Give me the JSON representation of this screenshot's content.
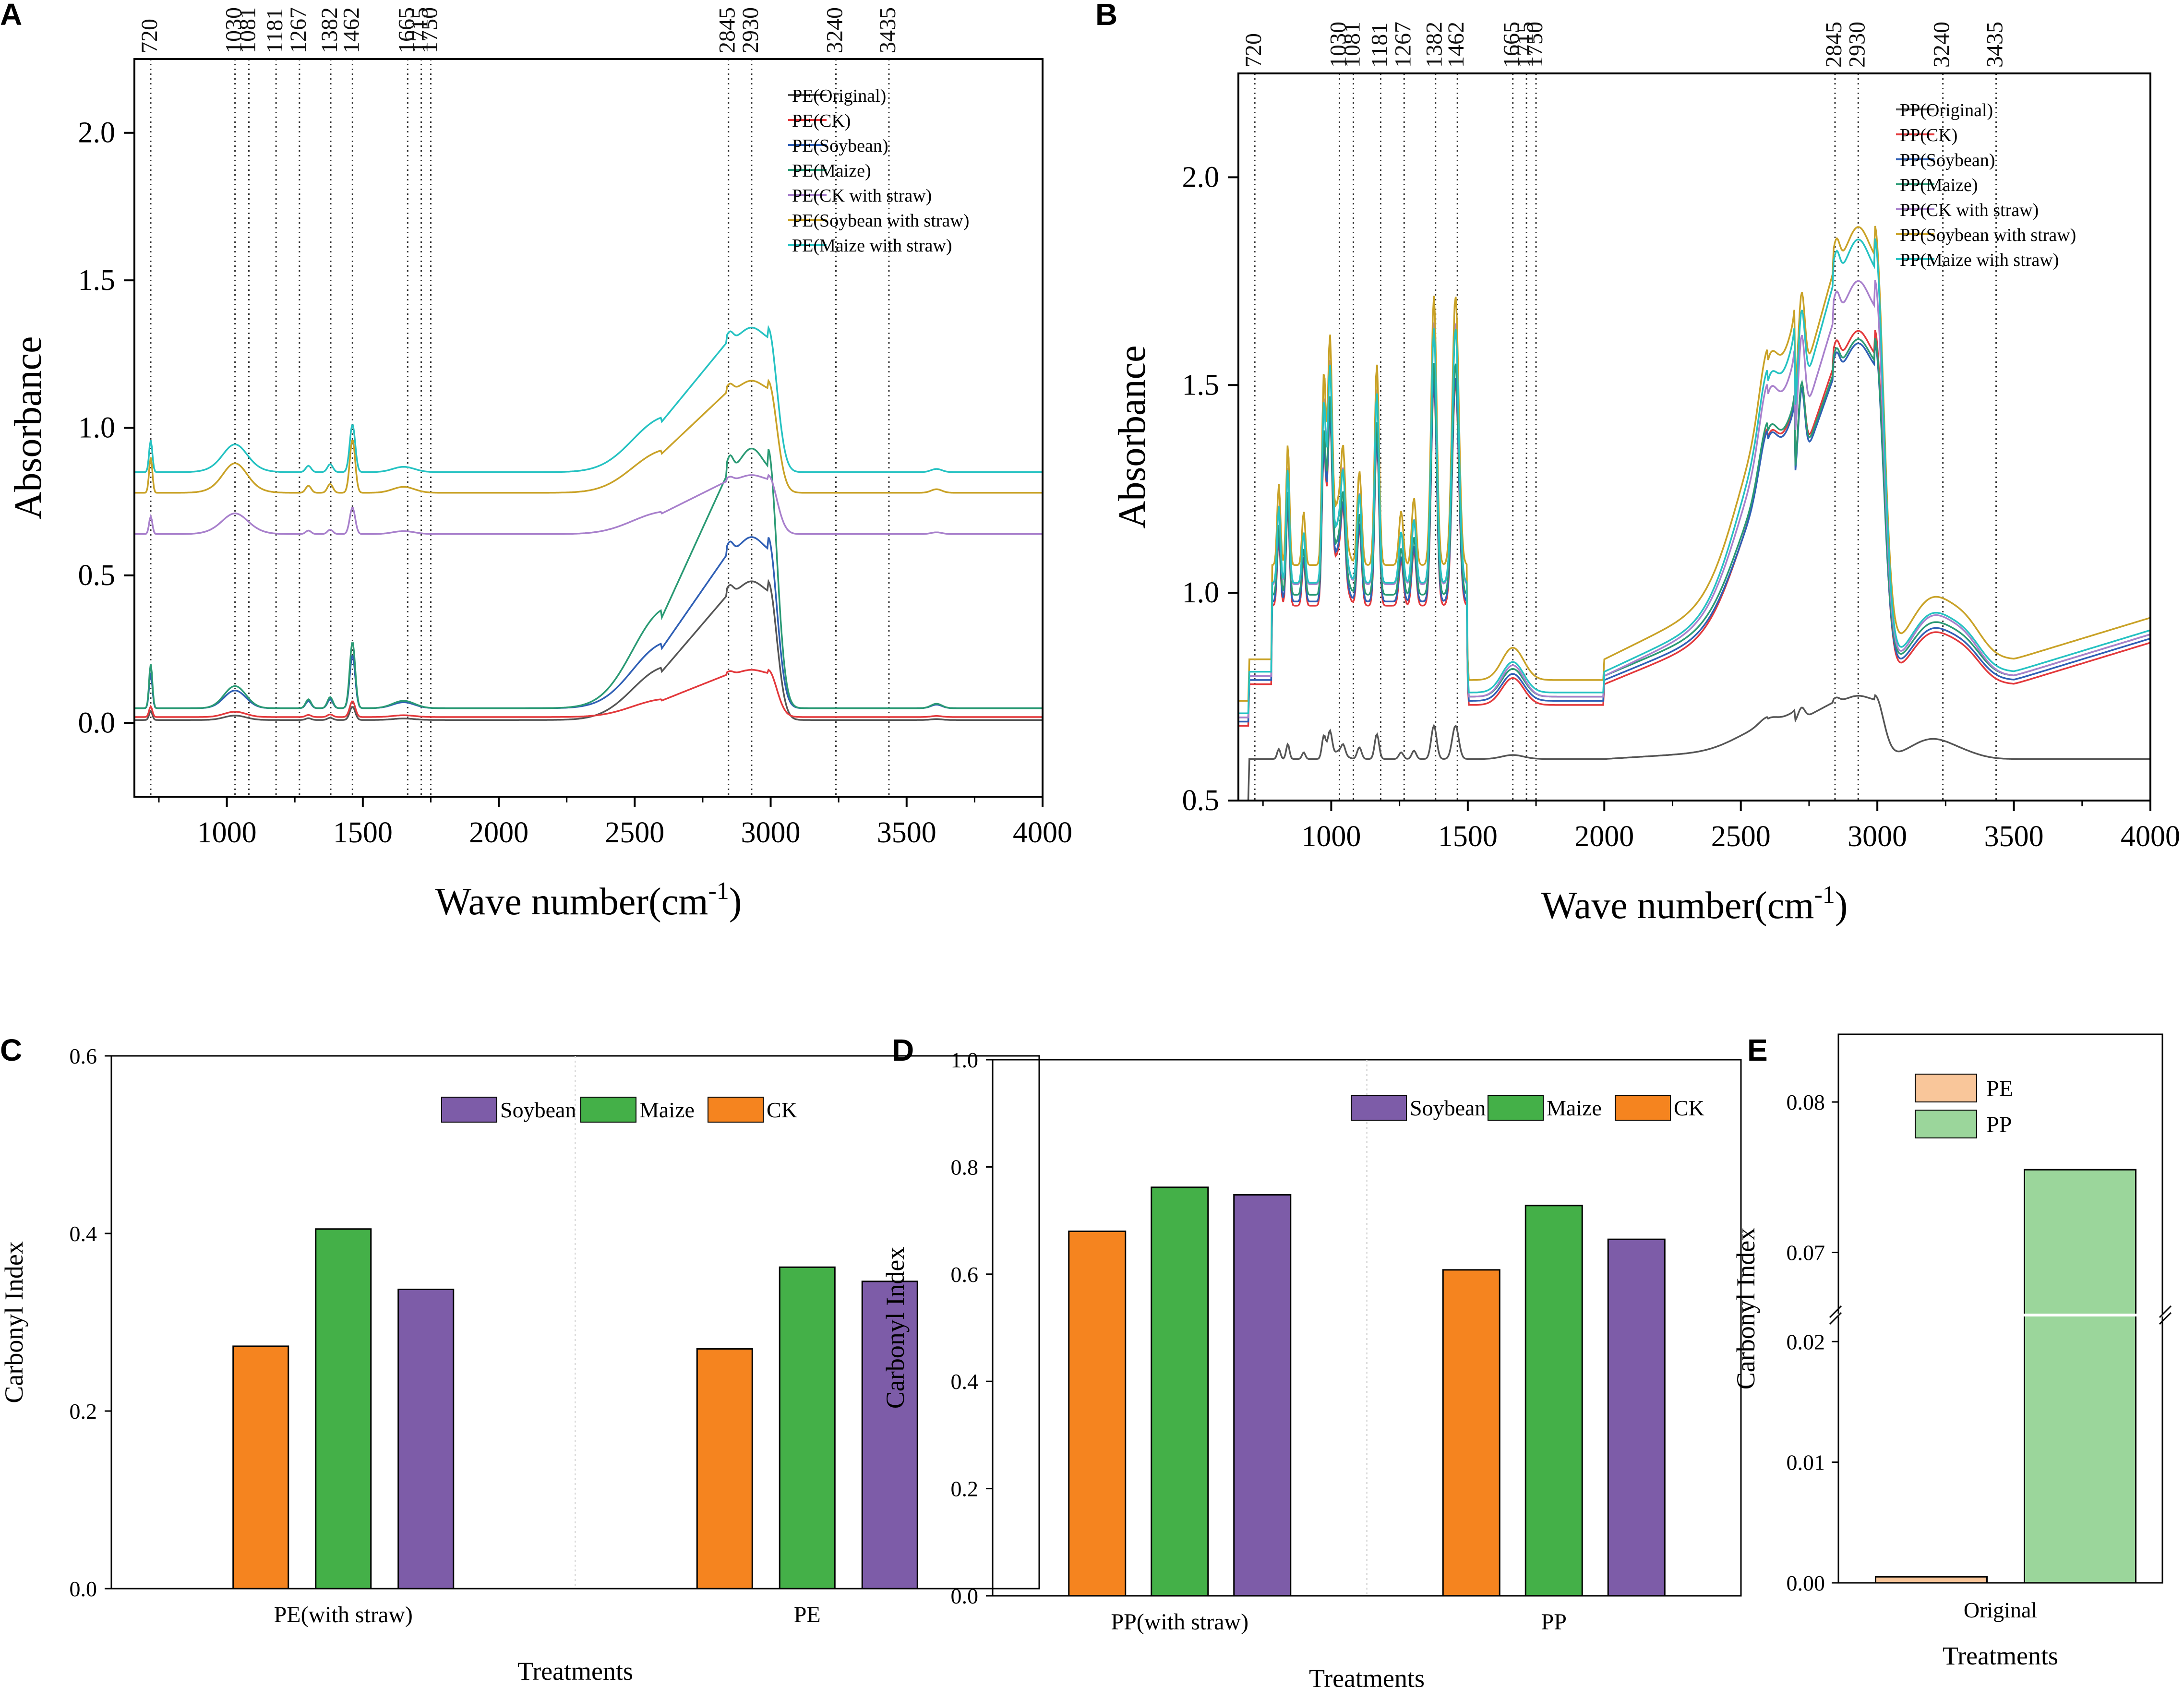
{
  "figure": {
    "panels": [
      "A",
      "B",
      "C",
      "D",
      "E"
    ]
  },
  "chart_data": [
    {
      "panel": "A",
      "type": "line",
      "title": "",
      "xlabel": "Wave number(cm",
      "xlabel_sup": "-1",
      "xlabel_close": ")",
      "ylabel": "Absorbance",
      "xlim": [
        660,
        4000
      ],
      "ylim": [
        -0.25,
        2.25
      ],
      "xticks": [
        1000,
        1500,
        2000,
        2500,
        3000,
        3500,
        4000
      ],
      "yticks": [
        0.0,
        0.5,
        1.0,
        1.5,
        2.0
      ],
      "ytick_labels": [
        "0.0",
        "0.5",
        "1.0",
        "1.5",
        "2.0"
      ],
      "ref_lines": [
        720,
        1030,
        1081,
        1181,
        1267,
        1382,
        1462,
        1665,
        1715,
        1750,
        2845,
        2930,
        3240,
        3435
      ],
      "legend_position": "top-right",
      "series": [
        {
          "name": "PE(Original)",
          "color": "#555555",
          "base": 0.01,
          "peak": 0.48,
          "bump": 0.05
        },
        {
          "name": "PE(CK)",
          "color": "#e3393c",
          "base": 0.02,
          "peak": 0.18,
          "bump": 0.06
        },
        {
          "name": "PE(Soybean)",
          "color": "#2f5fb5",
          "base": 0.05,
          "peak": 0.63,
          "bump": 0.2
        },
        {
          "name": "PE(Maize)",
          "color": "#2a9a74",
          "base": 0.05,
          "peak": 0.93,
          "bump": 0.25
        },
        {
          "name": "PE(CK with straw)",
          "color": "#a880cc",
          "base": 0.64,
          "peak": 0.84,
          "bump": 0.1
        },
        {
          "name": "PE(Soybean with straw)",
          "color": "#c9a227",
          "base": 0.78,
          "peak": 1.16,
          "bump": 0.2
        },
        {
          "name": "PE(Maize with straw)",
          "color": "#25c2c2",
          "base": 0.85,
          "peak": 1.34,
          "bump": 0.18
        }
      ]
    },
    {
      "panel": "B",
      "type": "line",
      "title": "",
      "xlabel": "Wave number(cm",
      "xlabel_sup": "-1",
      "xlabel_close": ")",
      "ylabel": "Absorbance",
      "xlim": [
        660,
        4000
      ],
      "ylim": [
        0.5,
        2.25
      ],
      "xticks": [
        1000,
        1500,
        2000,
        2500,
        3000,
        3500,
        4000
      ],
      "yticks": [
        0.5,
        1.0,
        1.5,
        2.0
      ],
      "ytick_labels": [
        "0.5",
        "1.0",
        "1.5",
        "2.0"
      ],
      "ref_lines": [
        720,
        1030,
        1081,
        1181,
        1267,
        1382,
        1462,
        1665,
        1715,
        1750,
        2845,
        2930,
        3240,
        3435
      ],
      "legend_position": "top-right",
      "series": [
        {
          "name": "PP(Original)",
          "color": "#555555",
          "base": 0.6,
          "peak": 0.76,
          "bump": 0.1
        },
        {
          "name": "PP(CK)",
          "color": "#e3393c",
          "base": 0.78,
          "peak": 1.68,
          "bump": 0.6
        },
        {
          "name": "PP(Soybean)",
          "color": "#2f5fb5",
          "base": 0.79,
          "peak": 1.65,
          "bump": 0.6
        },
        {
          "name": "PP(Maize)",
          "color": "#2a9a74",
          "base": 0.8,
          "peak": 1.66,
          "bump": 0.62
        },
        {
          "name": "PP(CK with straw)",
          "color": "#a880cc",
          "base": 0.8,
          "peak": 1.8,
          "bump": 0.7
        },
        {
          "name": "PP(Soybean with straw)",
          "color": "#c9a227",
          "base": 0.84,
          "peak": 1.93,
          "bump": 0.72
        },
        {
          "name": "PP(Maize with straw)",
          "color": "#25c2c2",
          "base": 0.81,
          "peak": 1.9,
          "bump": 0.68
        }
      ]
    },
    {
      "panel": "C",
      "type": "bar",
      "xlabel": "Treatments",
      "ylabel": "Carbonyl Index",
      "ylim": [
        0,
        0.6
      ],
      "yticks": [
        0.0,
        0.2,
        0.4,
        0.6
      ],
      "ytick_labels": [
        "0.0",
        "0.2",
        "0.4",
        "0.6"
      ],
      "categories": [
        "PE(with straw)",
        "PE"
      ],
      "legend_position": "top-right",
      "series": [
        {
          "name": "CK",
          "color": "#f5841f",
          "values": [
            0.273,
            0.27
          ]
        },
        {
          "name": "Maize",
          "color": "#44b048",
          "values": [
            0.405,
            0.362
          ]
        },
        {
          "name": "Soybean",
          "color": "#7d5ca8",
          "values": [
            0.337,
            0.346
          ]
        }
      ],
      "legend_order": [
        "Soybean",
        "Maize",
        "CK"
      ]
    },
    {
      "panel": "D",
      "type": "bar",
      "xlabel": "Treatments",
      "ylabel": "Carbonyl Index",
      "ylim": [
        0,
        1.0
      ],
      "yticks": [
        0.0,
        0.2,
        0.4,
        0.6,
        0.8,
        1.0
      ],
      "ytick_labels": [
        "0.0",
        "0.2",
        "0.4",
        "0.6",
        "0.8",
        "1.0"
      ],
      "categories": [
        "PP(with straw)",
        "PP"
      ],
      "legend_position": "top-right",
      "series": [
        {
          "name": "CK",
          "color": "#f5841f",
          "values": [
            0.68,
            0.608
          ]
        },
        {
          "name": "Maize",
          "color": "#44b048",
          "values": [
            0.762,
            0.728
          ]
        },
        {
          "name": "Soybean",
          "color": "#7d5ca8",
          "values": [
            0.748,
            0.665
          ]
        }
      ],
      "legend_order": [
        "Soybean",
        "Maize",
        "CK"
      ]
    },
    {
      "panel": "E",
      "type": "bar",
      "xlabel": "Treatments",
      "ylabel": "Carbonyl Index",
      "axis_break": [
        0.022,
        0.066
      ],
      "yticks": [
        0.0,
        0.01,
        0.02,
        0.07,
        0.08
      ],
      "ytick_labels": [
        "0.00",
        "0.01",
        "0.02",
        "0.07",
        "0.08"
      ],
      "categories": [
        "Original"
      ],
      "legend_position": "top-left",
      "series": [
        {
          "name": "PE",
          "color": "#f9c69a",
          "values": [
            0.0005
          ]
        },
        {
          "name": "PP",
          "color": "#9bd69b",
          "values": [
            0.0755
          ]
        }
      ]
    }
  ]
}
